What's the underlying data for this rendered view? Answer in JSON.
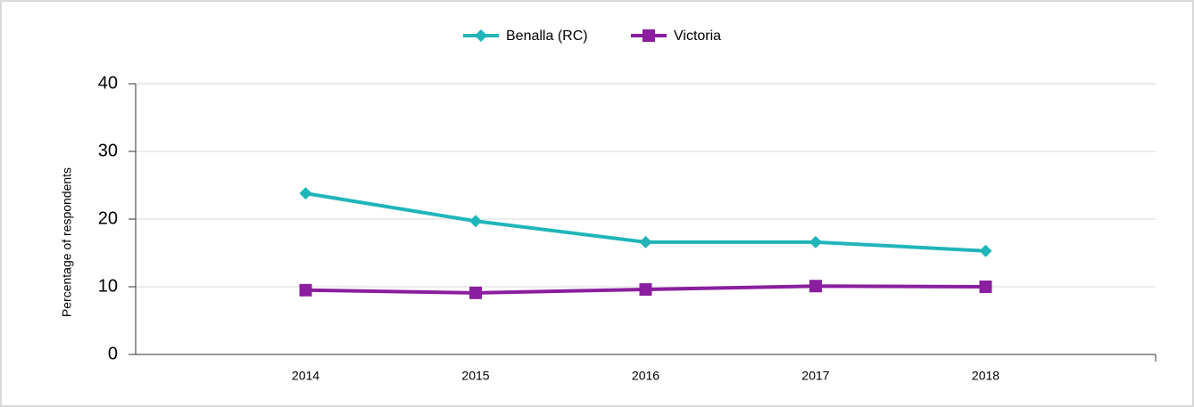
{
  "chart_data": {
    "type": "line",
    "y_label": "Percentage of respondents",
    "x": [
      2014,
      2015,
      2016,
      2017,
      2018
    ],
    "xlim": [
      2013,
      2019
    ],
    "xticks": [
      2014,
      2015,
      2016,
      2017,
      2018
    ],
    "ylim": [
      0,
      40
    ],
    "yticks": [
      0,
      10,
      20,
      30,
      40
    ],
    "grid": true,
    "legend": "top",
    "series": [
      {
        "name": "Benalla (RC)",
        "color": "#1fb5b9",
        "marker": "diamond",
        "values": [
          23.8,
          19.7,
          16.6,
          16.6,
          15.3
        ]
      },
      {
        "name": "Victoria",
        "color": "#8a1e9e",
        "marker": "square",
        "values": [
          9.5,
          9.1,
          9.6,
          10.1,
          10.0
        ]
      }
    ]
  }
}
